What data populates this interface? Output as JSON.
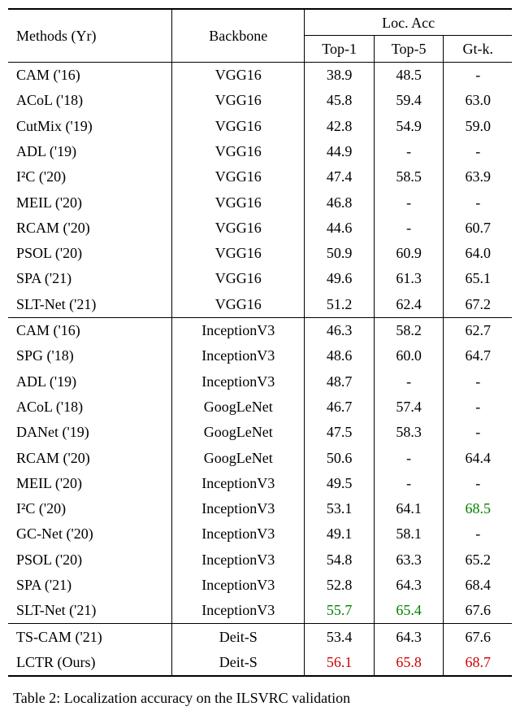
{
  "header": {
    "methods": "Methods (Yr)",
    "backbone": "Backbone",
    "locacc": "Loc. Acc",
    "top1": "Top-1",
    "top5": "Top-5",
    "gtk": "Gt-k."
  },
  "sections": [
    {
      "rows": [
        {
          "method": "CAM ('16)",
          "backbone": "VGG16",
          "top1": {
            "v": "38.9"
          },
          "top5": {
            "v": "48.5"
          },
          "gtk": {
            "v": "-"
          }
        },
        {
          "method": "ACoL ('18)",
          "backbone": "VGG16",
          "top1": {
            "v": "45.8"
          },
          "top5": {
            "v": "59.4"
          },
          "gtk": {
            "v": "63.0"
          }
        },
        {
          "method": "CutMix ('19)",
          "backbone": "VGG16",
          "top1": {
            "v": "42.8"
          },
          "top5": {
            "v": "54.9"
          },
          "gtk": {
            "v": "59.0"
          }
        },
        {
          "method": "ADL ('19)",
          "backbone": "VGG16",
          "top1": {
            "v": "44.9"
          },
          "top5": {
            "v": "-"
          },
          "gtk": {
            "v": "-"
          }
        },
        {
          "method": "I²C ('20)",
          "backbone": "VGG16",
          "top1": {
            "v": "47.4"
          },
          "top5": {
            "v": "58.5"
          },
          "gtk": {
            "v": "63.9"
          }
        },
        {
          "method": "MEIL ('20)",
          "backbone": "VGG16",
          "top1": {
            "v": "46.8"
          },
          "top5": {
            "v": "-"
          },
          "gtk": {
            "v": "-"
          }
        },
        {
          "method": "RCAM ('20)",
          "backbone": "VGG16",
          "top1": {
            "v": "44.6"
          },
          "top5": {
            "v": "-"
          },
          "gtk": {
            "v": "60.7"
          }
        },
        {
          "method": "PSOL ('20)",
          "backbone": "VGG16",
          "top1": {
            "v": "50.9"
          },
          "top5": {
            "v": "60.9"
          },
          "gtk": {
            "v": "64.0"
          }
        },
        {
          "method": "SPA ('21)",
          "backbone": "VGG16",
          "top1": {
            "v": "49.6"
          },
          "top5": {
            "v": "61.3"
          },
          "gtk": {
            "v": "65.1"
          }
        },
        {
          "method": "SLT-Net ('21)",
          "backbone": "VGG16",
          "top1": {
            "v": "51.2"
          },
          "top5": {
            "v": "62.4"
          },
          "gtk": {
            "v": "67.2"
          }
        }
      ]
    },
    {
      "rows": [
        {
          "method": "CAM ('16)",
          "backbone": "InceptionV3",
          "top1": {
            "v": "46.3"
          },
          "top5": {
            "v": "58.2"
          },
          "gtk": {
            "v": "62.7"
          }
        },
        {
          "method": "SPG ('18)",
          "backbone": "InceptionV3",
          "top1": {
            "v": "48.6"
          },
          "top5": {
            "v": "60.0"
          },
          "gtk": {
            "v": "64.7"
          }
        },
        {
          "method": "ADL ('19)",
          "backbone": "InceptionV3",
          "top1": {
            "v": "48.7"
          },
          "top5": {
            "v": "-"
          },
          "gtk": {
            "v": "-"
          }
        },
        {
          "method": "ACoL ('18)",
          "backbone": "GoogLeNet",
          "top1": {
            "v": "46.7"
          },
          "top5": {
            "v": "57.4"
          },
          "gtk": {
            "v": "-"
          }
        },
        {
          "method": "DANet ('19)",
          "backbone": "GoogLeNet",
          "top1": {
            "v": "47.5"
          },
          "top5": {
            "v": "58.3"
          },
          "gtk": {
            "v": "-"
          }
        },
        {
          "method": "RCAM ('20)",
          "backbone": "GoogLeNet",
          "top1": {
            "v": "50.6"
          },
          "top5": {
            "v": "-"
          },
          "gtk": {
            "v": "64.4"
          }
        },
        {
          "method": "MEIL ('20)",
          "backbone": "InceptionV3",
          "top1": {
            "v": "49.5"
          },
          "top5": {
            "v": "-"
          },
          "gtk": {
            "v": "-"
          }
        },
        {
          "method": "I²C ('20)",
          "backbone": "InceptionV3",
          "top1": {
            "v": "53.1"
          },
          "top5": {
            "v": "64.1"
          },
          "gtk": {
            "v": "68.5",
            "c": "green"
          }
        },
        {
          "method": "GC-Net ('20)",
          "backbone": "InceptionV3",
          "top1": {
            "v": "49.1"
          },
          "top5": {
            "v": "58.1"
          },
          "gtk": {
            "v": "-"
          }
        },
        {
          "method": "PSOL ('20)",
          "backbone": "InceptionV3",
          "top1": {
            "v": "54.8"
          },
          "top5": {
            "v": "63.3"
          },
          "gtk": {
            "v": "65.2"
          }
        },
        {
          "method": "SPA ('21)",
          "backbone": "InceptionV3",
          "top1": {
            "v": "52.8"
          },
          "top5": {
            "v": "64.3"
          },
          "gtk": {
            "v": "68.4"
          }
        },
        {
          "method": "SLT-Net ('21)",
          "backbone": "InceptionV3",
          "top1": {
            "v": "55.7",
            "c": "green"
          },
          "top5": {
            "v": "65.4",
            "c": "green"
          },
          "gtk": {
            "v": "67.6"
          }
        }
      ]
    },
    {
      "rows": [
        {
          "method": "TS-CAM ('21)",
          "backbone": "Deit-S",
          "top1": {
            "v": "53.4"
          },
          "top5": {
            "v": "64.3"
          },
          "gtk": {
            "v": "67.6"
          }
        },
        {
          "method": "LCTR (Ours)",
          "backbone": "Deit-S",
          "top1": {
            "v": "56.1",
            "c": "red"
          },
          "top5": {
            "v": "65.8",
            "c": "red"
          },
          "gtk": {
            "v": "68.7",
            "c": "red"
          }
        }
      ]
    }
  ],
  "caption": "Table 2: Localization accuracy on the ILSVRC validation",
  "colors": {
    "green": "#008000",
    "red": "#cc0000"
  }
}
